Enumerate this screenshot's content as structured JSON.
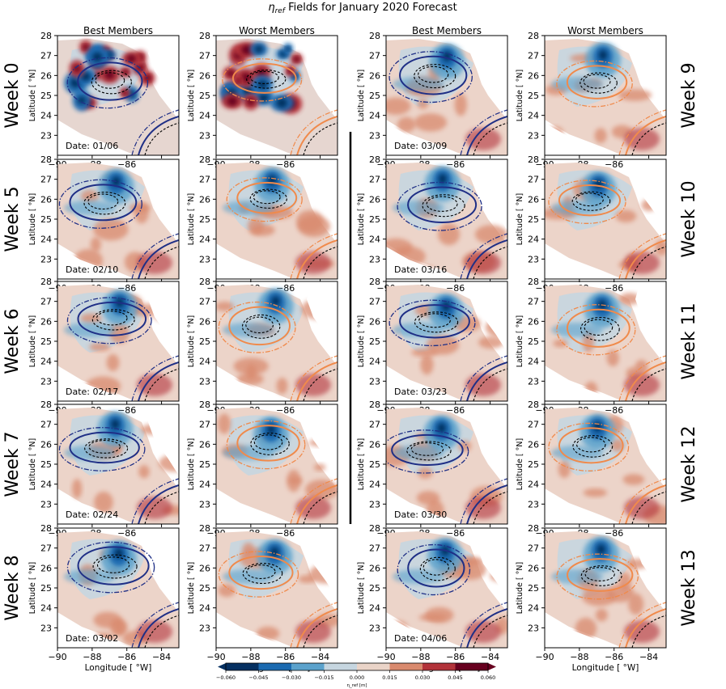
{
  "chart_data": {
    "type": "contour",
    "title": "η_ref Fields for January 2020 Forecast",
    "title_symbol": "η",
    "title_subscript": "ref",
    "title_rest": " Fields for January 2020 Forecast",
    "column_headers": [
      "Best Members",
      "Worst Members",
      "Best Members",
      "Worst Members"
    ],
    "left_week_labels": [
      "Week 0",
      "Week 5",
      "Week 6",
      "Week 7",
      "Week 8"
    ],
    "right_week_labels": [
      "Week 9",
      "Week 10",
      "Week 11",
      "Week 12",
      "Week 13"
    ],
    "dates_left": [
      "Date: 01/06",
      "Date: 02/10",
      "Date: 02/17",
      "Date: 02/24",
      "Date: 03/02"
    ],
    "dates_right": [
      "Date: 03/09",
      "Date: 03/16",
      "Date: 03/23",
      "Date: 03/30",
      "Date: 04/06"
    ],
    "xlabel": "Longitude [ °W]",
    "ylabel": "Latitude [ °N]",
    "xlim": [
      -90,
      -83
    ],
    "ylim": [
      22,
      28
    ],
    "x_ticks": [
      -90,
      -88,
      -86,
      -84
    ],
    "y_ticks": [
      23,
      24,
      25,
      26,
      27,
      28
    ],
    "x_tick_labels": [
      "−90",
      "−88",
      "−86",
      "−84"
    ],
    "y_tick_labels": [
      "23",
      "24",
      "25",
      "26",
      "27",
      "28"
    ],
    "colorbar": {
      "label": "η_ref [m]",
      "levels": [
        -0.06,
        -0.045,
        -0.03,
        -0.015,
        0.0,
        0.015,
        0.03,
        0.045,
        0.06
      ],
      "tick_labels": [
        "−0.060",
        "−0.045",
        "−0.030",
        "−0.015",
        "0.000",
        "0.015",
        "0.030",
        "0.045",
        "0.060"
      ],
      "colors": [
        "#053061",
        "#1b6ab0",
        "#5ba2cc",
        "#c6d6e0",
        "#ead4c8",
        "#d98a6e",
        "#b2333a",
        "#67001f"
      ]
    },
    "contour_colors": {
      "best": "#1f2f86",
      "worst": "#f08a4b",
      "reference": "#000000"
    }
  }
}
